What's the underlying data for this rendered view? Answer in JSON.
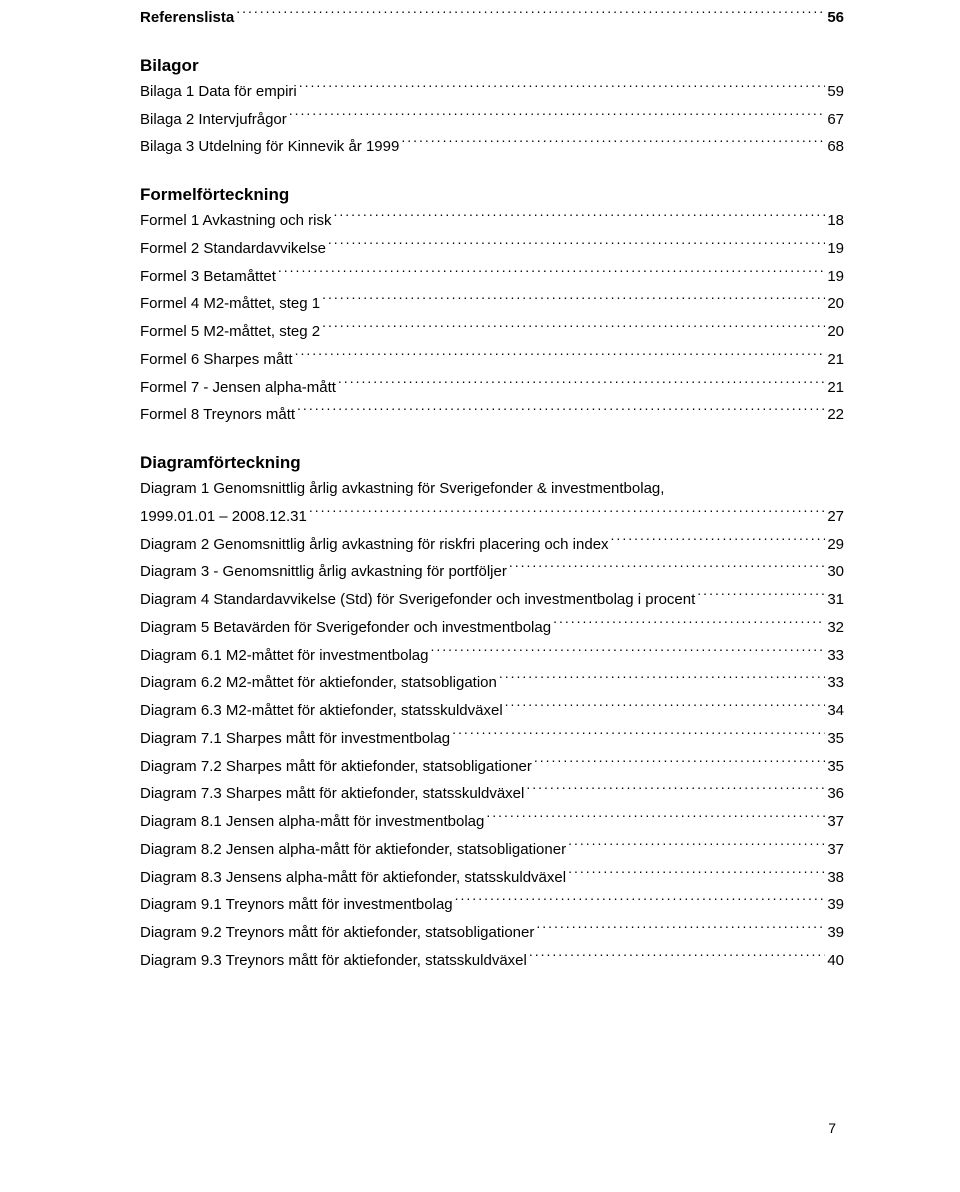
{
  "top": {
    "referenslista_label": "Referenslista",
    "referenslista_page": "56"
  },
  "bilagor": {
    "heading": "Bilagor",
    "items": [
      {
        "label": "Bilaga 1 Data för empiri",
        "page": "59"
      },
      {
        "label": "Bilaga 2 Intervjufrågor",
        "page": "67"
      },
      {
        "label": "Bilaga 3 Utdelning för Kinnevik år 1999",
        "page": "68"
      }
    ]
  },
  "formel": {
    "heading": "Formelförteckning",
    "items": [
      {
        "label": "Formel 1 Avkastning och risk",
        "page": "18"
      },
      {
        "label": "Formel 2 Standardavvikelse",
        "page": "19"
      },
      {
        "label": "Formel 3 Betamåttet",
        "page": "19"
      },
      {
        "label": "Formel 4 M2-måttet, steg 1",
        "page": "20"
      },
      {
        "label": "Formel 5 M2-måttet, steg 2",
        "page": "20"
      },
      {
        "label": "Formel 6 Sharpes mått",
        "page": "21"
      },
      {
        "label": "Formel 7 - Jensen alpha-mått",
        "page": "21"
      },
      {
        "label": "Formel 8 Treynors mått",
        "page": "22"
      }
    ]
  },
  "diagram": {
    "heading": "Diagramförteckning",
    "line1a": "Diagram 1 Genomsnittlig årlig avkastning för Sverigefonder & investmentbolag,",
    "line1b_label": "1999.01.01 – 2008.12.31",
    "line1b_page": "27",
    "items": [
      {
        "label": "Diagram 2 Genomsnittlig årlig avkastning för riskfri placering och index",
        "page": "29"
      },
      {
        "label": "Diagram 3 - Genomsnittlig årlig avkastning för portföljer",
        "page": "30"
      },
      {
        "label": "Diagram 4 Standardavvikelse (Std) för Sverigefonder och investmentbolag i procent",
        "page": "31"
      },
      {
        "label": "Diagram 5 Betavärden för Sverigefonder och investmentbolag",
        "page": "32"
      },
      {
        "label": "Diagram 6.1 M2-måttet för investmentbolag",
        "page": "33"
      },
      {
        "label": "Diagram 6.2 M2-måttet för aktiefonder, statsobligation",
        "page": "33"
      },
      {
        "label": "Diagram 6.3 M2-måttet för aktiefonder, statsskuldväxel",
        "page": "34"
      },
      {
        "label": "Diagram 7.1 Sharpes mått för investmentbolag",
        "page": "35"
      },
      {
        "label": "Diagram 7.2 Sharpes mått för aktiefonder, statsobligationer",
        "page": "35"
      },
      {
        "label": "Diagram 7.3 Sharpes mått för aktiefonder, statsskuldväxel",
        "page": "36"
      },
      {
        "label": "Diagram 8.1 Jensen alpha-mått för investmentbolag",
        "page": "37"
      },
      {
        "label": "Diagram 8.2 Jensen alpha-mått för aktiefonder, statsobligationer",
        "page": "37"
      },
      {
        "label": "Diagram 8.3 Jensens alpha-mått för aktiefonder, statsskuldväxel",
        "page": "38"
      },
      {
        "label": "Diagram 9.1 Treynors mått för investmentbolag",
        "page": "39"
      },
      {
        "label": "Diagram 9.2 Treynors mått för aktiefonder, statsobligationer",
        "page": "39"
      },
      {
        "label": "Diagram 9.3 Treynors mått för aktiefonder, statsskuldväxel",
        "page": "40"
      }
    ]
  },
  "page_number": "7"
}
